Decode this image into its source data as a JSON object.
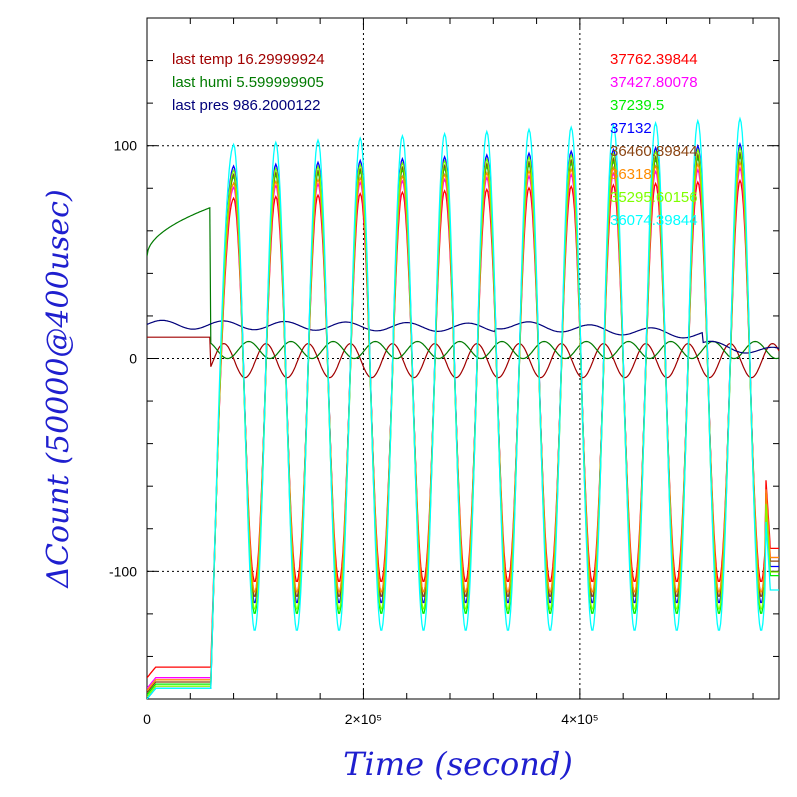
{
  "chart_data": {
    "type": "line",
    "title": "",
    "xlabel": "Time (second)",
    "ylabel": "ΔCount (50000@400usec)",
    "xlim": [
      0,
      584000
    ],
    "ylim": [
      -160,
      160
    ],
    "x_ticks": [
      {
        "value": 0,
        "label": "0"
      },
      {
        "value": 200000,
        "label": "2×10⁵"
      },
      {
        "value": 400000,
        "label": "4×10⁵"
      }
    ],
    "y_ticks": [
      {
        "value": 100,
        "label": "100"
      },
      {
        "value": 0,
        "label": "0"
      },
      {
        "value": -100,
        "label": "-100"
      }
    ],
    "grid_x": [
      200000,
      400000
    ],
    "grid_y": [
      100,
      0,
      -100
    ],
    "env_labels": [
      {
        "text": "last temp 16.29999924",
        "color": "#a00000"
      },
      {
        "text": "last humi 5.599999905",
        "color": "#007a00"
      },
      {
        "text": "last pres 986.2000122",
        "color": "#00007a"
      }
    ],
    "env_series": [
      {
        "color": "#a00000",
        "values_before": 10,
        "amplitude": 8,
        "offset": -1
      },
      {
        "color": "#007a00",
        "values_before_start": 48,
        "values_before_end": 71,
        "amplitude": 4,
        "offset": 4
      },
      {
        "color": "#00007a",
        "start": 16,
        "mid": 13,
        "end": 3,
        "amplitude": 2
      }
    ],
    "oscillation": {
      "start": 59000,
      "end": 571000,
      "period": 39000,
      "first_peak": 80000,
      "first_trough": 99000
    },
    "series": [
      {
        "name": "37762.39844",
        "color": "#ff0000",
        "peak": 75,
        "trough": -105,
        "pre": -150
      },
      {
        "name": "37427.80078",
        "color": "#ff00ff",
        "peak": 80,
        "trough": -110,
        "pre": -155
      },
      {
        "name": "37239.5",
        "color": "#00ee00",
        "peak": 85,
        "trough": -120,
        "pre": -158
      },
      {
        "name": "37132",
        "color": "#0000ff",
        "peak": 90,
        "trough": -115,
        "pre": -160
      },
      {
        "name": "36460.89844",
        "color": "#8b4513",
        "peak": 86,
        "trough": -112,
        "pre": -157
      },
      {
        "name": "36318",
        "color": "#ff8c00",
        "peak": 82,
        "trough": -110,
        "pre": -156
      },
      {
        "name": "35295.60156",
        "color": "#7fff00",
        "peak": 88,
        "trough": -118,
        "pre": -159
      },
      {
        "name": "36074.39844",
        "color": "#00ffff",
        "peak": 100,
        "trough": -128,
        "pre": -160
      }
    ]
  }
}
